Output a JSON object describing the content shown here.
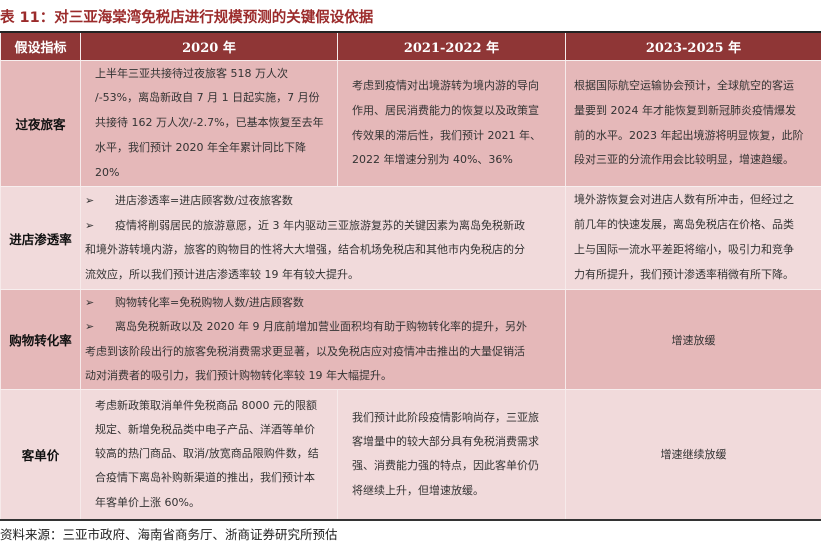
{
  "title": "表 11：对三亚海棠湾免税店进行规模预测的关键假设依据",
  "headers": [
    "假设指标",
    "2020 年",
    "2021-2022 年",
    "2023-2025 年"
  ],
  "rows": [
    {
      "label": "过夜旅客",
      "c2020": "上半年三亚共接待过夜旅客 518 万人次\n/-53%，离岛新政自 7 月 1 日起实施，7 月份\n共接待 162 万人次/-2.7%，已基本恢复至去年\n水平，我们预计 2020 年全年累计同比下降\n20%",
      "c2021": "考虑到疫情对出境游转为境内游的导向\n作用、居民消费能力的恢复以及政策宣\n传效果的滞后性，我们预计 2021 年、\n2022 年增速分别为 40%、36%",
      "c2023": "根据国际航空运输协会预计，全球航空的客运\n量要到 2024 年才能恢复到新冠肺炎疫情爆发\n前的水平。2023 年起出境游将明显恢复，此阶\n段对三亚的分流作用会比较明显，增速趋缓。"
    },
    {
      "label": "进店渗透率",
      "bullets": [
        "进店渗透率=进店顾客数/过夜旅客数",
        "疫情将削弱居民的旅游意愿，近 3 年内驱动三亚旅游复苏的关键因素为离岛免税新政",
        "和境外游转境内游，旅客的购物目的性将大大增强，结合机场免税店和其他市内免税店的分",
        "流效应，所以我们预计进店渗透率较 19 年有较大提升。"
      ],
      "c2023": "境外游恢复会对进店人数有所冲击，但经过之\n前几年的快速发展，离岛免税店在价格、品类\n上与国际一流水平差距将缩小，吸引力和竞争\n力有所提升，我们预计渗透率稍微有所下降。"
    },
    {
      "label": "购物转化率",
      "bullets": [
        "购物转化率=免税购物人数/进店顾客数",
        "离岛免税新政以及 2020 年 9 月底前增加营业面积均有助于购物转化率的提升，另外",
        "考虑到该阶段出行的旅客免税消费需求更显著，以及免税店应对疫情冲击推出的大量促销活",
        "动对消费者的吸引力，我们预计购物转化率较 19 年大幅提升。"
      ],
      "c2023": "增速放缓"
    },
    {
      "label": "客单价",
      "c2020": "考虑新政策取消单件免税商品 8000 元的限额\n规定、新增免税品类中电子产品、洋酒等单价\n较高的热门商品、取消/放宽商品限购件数，结\n合疫情下离岛补购新渠道的推出，我们预计本\n年客单价上涨 60%。",
      "c2021": "我们预计此阶段疫情影响尚存，三亚旅\n客增量中的较大部分具有免税消费需求\n强、消费能力强的特点，因此客单价仍\n将继续上升，但增速放缓。",
      "c2023": "增速继续放缓"
    }
  ],
  "bullet_icon": "arrowhead-bullet-icon",
  "source": "资料来源：三亚市政府、海南省商务厅、浙商证券研究所预估",
  "colors": {
    "header": "#8f3636",
    "row_dark": "#e5b8b9",
    "row_light": "#f1dadb",
    "title": "#9b2b2b"
  }
}
